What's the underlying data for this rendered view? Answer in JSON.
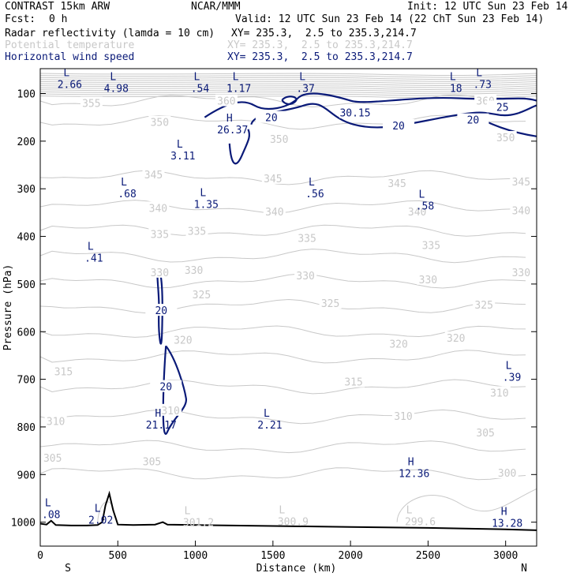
{
  "header": {
    "model": "CONTRAST 15km ARW",
    "org": "NCAR/MMM",
    "init": "Init: 12 UTC Sun 23 Feb 14",
    "fcst_label": "Fcst:",
    "fcst_value": "0 h",
    "valid": "Valid: 12 UTC Sun 23 Feb 14 (22 ChT Sun 23 Feb 14)"
  },
  "fields": [
    {
      "name": "Radar reflectivity (lamda = 10 cm)",
      "xy": "XY= 235.3,  2.5 to 235.3,214.7",
      "color": "#000000"
    },
    {
      "name": "Potential temperature",
      "xy": "XY= 235.3,  2.5 to 235.3,214.7",
      "color": "#c8c8c8"
    },
    {
      "name": "Horizontal wind speed",
      "xy": "XY= 235.3,  2.5 to 235.3,214.7",
      "color": "#0a1a78"
    }
  ],
  "chart_data": {
    "type": "cross-section contour",
    "xlabel": "Distance (km)",
    "ylabel": "Pressure (hPa)",
    "xlim": [
      0,
      3200
    ],
    "ylim": [
      1050,
      50
    ],
    "xticks": [
      0,
      500,
      1000,
      1500,
      2000,
      2500,
      3000
    ],
    "yticks": [
      100,
      200,
      300,
      400,
      500,
      600,
      700,
      800,
      900,
      1000
    ],
    "end_labels": {
      "left": "S",
      "right": "N"
    },
    "theta_labels": [
      {
        "text": "355",
        "x": 330,
        "p": 120
      },
      {
        "text": "360",
        "x": 1200,
        "p": 115
      },
      {
        "text": "360",
        "x": 2870,
        "p": 115
      },
      {
        "text": "350",
        "x": 770,
        "p": 160
      },
      {
        "text": "350",
        "x": 1540,
        "p": 195
      },
      {
        "text": "350",
        "x": 3000,
        "p": 192
      },
      {
        "text": "345",
        "x": 730,
        "p": 270
      },
      {
        "text": "345",
        "x": 1500,
        "p": 278
      },
      {
        "text": "345",
        "x": 2300,
        "p": 288
      },
      {
        "text": "345",
        "x": 3100,
        "p": 285
      },
      {
        "text": "340",
        "x": 760,
        "p": 340
      },
      {
        "text": "340",
        "x": 1510,
        "p": 348
      },
      {
        "text": "340",
        "x": 2430,
        "p": 348
      },
      {
        "text": "340",
        "x": 3100,
        "p": 345
      },
      {
        "text": "335",
        "x": 770,
        "p": 395
      },
      {
        "text": "335",
        "x": 1010,
        "p": 388
      },
      {
        "text": "335",
        "x": 1720,
        "p": 403
      },
      {
        "text": "335",
        "x": 2520,
        "p": 418
      },
      {
        "text": "330",
        "x": 770,
        "p": 475
      },
      {
        "text": "330",
        "x": 990,
        "p": 470
      },
      {
        "text": "330",
        "x": 1710,
        "p": 482
      },
      {
        "text": "330",
        "x": 2500,
        "p": 490
      },
      {
        "text": "330",
        "x": 3100,
        "p": 475
      },
      {
        "text": "325",
        "x": 1040,
        "p": 522
      },
      {
        "text": "325",
        "x": 1870,
        "p": 540
      },
      {
        "text": "325",
        "x": 2860,
        "p": 543
      },
      {
        "text": "320",
        "x": 920,
        "p": 617
      },
      {
        "text": "320",
        "x": 2310,
        "p": 625
      },
      {
        "text": "320",
        "x": 2680,
        "p": 613
      },
      {
        "text": "315",
        "x": 150,
        "p": 683
      },
      {
        "text": "315",
        "x": 2020,
        "p": 705
      },
      {
        "text": "310",
        "x": 100,
        "p": 788
      },
      {
        "text": "310",
        "x": 840,
        "p": 765
      },
      {
        "text": "310",
        "x": 2340,
        "p": 777
      },
      {
        "text": "310",
        "x": 2960,
        "p": 728
      },
      {
        "text": "305",
        "x": 80,
        "p": 865
      },
      {
        "text": "305",
        "x": 720,
        "p": 872
      },
      {
        "text": "305",
        "x": 2870,
        "p": 812
      },
      {
        "text": "300",
        "x": 3010,
        "p": 896
      }
    ],
    "theta_extrema": [
      {
        "kind": "L",
        "value": "301.2",
        "x": 1020,
        "p": 1000
      },
      {
        "kind": "L",
        "value": "300.9",
        "x": 1630,
        "p": 998
      },
      {
        "kind": "L",
        "value": "299.6",
        "x": 2450,
        "p": 998
      }
    ],
    "wind_contour_labels": [
      {
        "text": "20",
        "x": 1490,
        "p": 150
      },
      {
        "text": "30.15",
        "x": 2030,
        "p": 140
      },
      {
        "text": "25",
        "x": 2980,
        "p": 128
      },
      {
        "text": "20",
        "x": 2310,
        "p": 167
      },
      {
        "text": "20",
        "x": 2790,
        "p": 155
      },
      {
        "text": "20",
        "x": 780,
        "p": 555
      },
      {
        "text": "20",
        "x": 810,
        "p": 715
      }
    ],
    "wind_extrema": [
      {
        "kind": "L",
        "value": "2.66",
        "x": 190,
        "p": 80
      },
      {
        "kind": "L",
        "value": "4.98",
        "x": 490,
        "p": 88
      },
      {
        "kind": "L",
        "value": ".54",
        "x": 1030,
        "p": 88
      },
      {
        "kind": "L",
        "value": "1.17",
        "x": 1280,
        "p": 88
      },
      {
        "kind": "L",
        "value": ".37",
        "x": 1710,
        "p": 88
      },
      {
        "kind": "L",
        "value": "18",
        "x": 2680,
        "p": 88
      },
      {
        "kind": "L",
        "value": ".73",
        "x": 2850,
        "p": 80
      },
      {
        "kind": "H",
        "value": "26.37",
        "x": 1240,
        "p": 175
      },
      {
        "kind": "L",
        "value": "3.11",
        "x": 920,
        "p": 230
      },
      {
        "kind": "L",
        "value": ".68",
        "x": 560,
        "p": 310
      },
      {
        "kind": "L",
        "value": "1.35",
        "x": 1070,
        "p": 332
      },
      {
        "kind": "L",
        "value": ".56",
        "x": 1770,
        "p": 310
      },
      {
        "kind": "L",
        "value": ".58",
        "x": 2480,
        "p": 335
      },
      {
        "kind": "L",
        "value": ".41",
        "x": 345,
        "p": 445
      },
      {
        "kind": "L",
        "value": ".39",
        "x": 3040,
        "p": 695
      },
      {
        "kind": "H",
        "value": "21.17",
        "x": 780,
        "p": 795
      },
      {
        "kind": "L",
        "value": "2.21",
        "x": 1480,
        "p": 795
      },
      {
        "kind": "H",
        "value": "12.36",
        "x": 2410,
        "p": 897
      },
      {
        "kind": "L",
        "value": ".08",
        "x": 70,
        "p": 983
      },
      {
        "kind": "L",
        "value": "2.02",
        "x": 390,
        "p": 995
      },
      {
        "kind": "H",
        "value": "13.28",
        "x": 3010,
        "p": 1001
      }
    ],
    "terrain_surface": [
      [
        0,
        1003
      ],
      [
        40,
        1005
      ],
      [
        70,
        997
      ],
      [
        100,
        1006
      ],
      [
        200,
        1007
      ],
      [
        300,
        1007
      ],
      [
        370,
        1006
      ],
      [
        400,
        1000
      ],
      [
        420,
        965
      ],
      [
        445,
        940
      ],
      [
        470,
        975
      ],
      [
        500,
        1005
      ],
      [
        600,
        1006
      ],
      [
        740,
        1005
      ],
      [
        790,
        1000
      ],
      [
        820,
        1005
      ],
      [
        1000,
        1006
      ],
      [
        1500,
        1008
      ],
      [
        2000,
        1010
      ],
      [
        2500,
        1012
      ],
      [
        3000,
        1015
      ],
      [
        3200,
        1017
      ]
    ]
  }
}
